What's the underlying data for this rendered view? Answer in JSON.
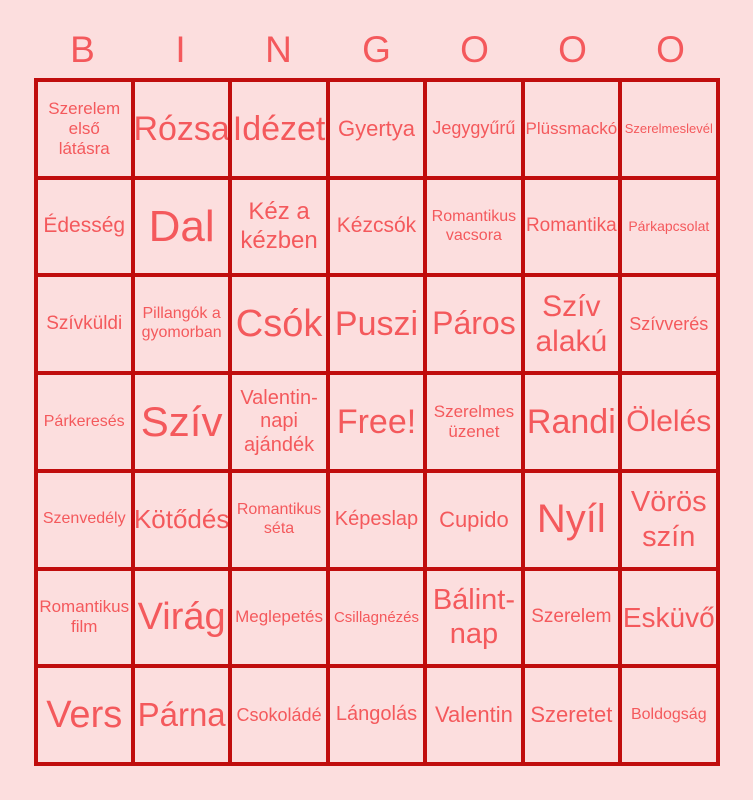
{
  "title": {
    "letters": [
      "B",
      "I",
      "N",
      "G",
      "O",
      "O",
      "O"
    ]
  },
  "colors": {
    "background": "#fcdede",
    "grid_line": "#c00d0d",
    "text": "#f4595c"
  },
  "grid": {
    "rows": 7,
    "cols": 7,
    "free_space_label": "Free!",
    "cells": [
      {
        "text": "Szerelem\nelső\nlátásra",
        "fs": 17
      },
      {
        "text": "Rózsa",
        "fs": 34
      },
      {
        "text": "Idézet",
        "fs": 34
      },
      {
        "text": "Gyertya",
        "fs": 22
      },
      {
        "text": "Jegygyűrű",
        "fs": 18
      },
      {
        "text": "Plüssmackó",
        "fs": 17
      },
      {
        "text": "Szerelmeslevél",
        "fs": 13
      },
      {
        "text": "Édesség",
        "fs": 21
      },
      {
        "text": "Dal",
        "fs": 44
      },
      {
        "text": "Kéz a\nkézben",
        "fs": 24
      },
      {
        "text": "Kézcsók",
        "fs": 21
      },
      {
        "text": "Romantikus\nvacsora",
        "fs": 16
      },
      {
        "text": "Romantika",
        "fs": 19
      },
      {
        "text": "Párkapcsolat",
        "fs": 14
      },
      {
        "text": "Szívküldi",
        "fs": 19
      },
      {
        "text": "Pillangók a\ngyomorban",
        "fs": 16
      },
      {
        "text": "Csók",
        "fs": 38
      },
      {
        "text": "Puszi",
        "fs": 34
      },
      {
        "text": "Páros",
        "fs": 32
      },
      {
        "text": "Szív\nalakú",
        "fs": 30
      },
      {
        "text": "Szívverés",
        "fs": 18
      },
      {
        "text": "Párkeresés",
        "fs": 16
      },
      {
        "text": "Szív",
        "fs": 42
      },
      {
        "text": "Valentin-\nnapi\najándék",
        "fs": 20
      },
      {
        "text": "Free!",
        "fs": 34,
        "free": true
      },
      {
        "text": "Szerelmes\nüzenet",
        "fs": 17
      },
      {
        "text": "Randi",
        "fs": 34
      },
      {
        "text": "Ölelés",
        "fs": 30
      },
      {
        "text": "Szenvedély",
        "fs": 16
      },
      {
        "text": "Kötődés",
        "fs": 26
      },
      {
        "text": "Romantikus\nséta",
        "fs": 16
      },
      {
        "text": "Képeslap",
        "fs": 20
      },
      {
        "text": "Cupido",
        "fs": 22
      },
      {
        "text": "Nyíl",
        "fs": 40
      },
      {
        "text": "Vörös\nszín",
        "fs": 29
      },
      {
        "text": "Romantikus\nfilm",
        "fs": 17
      },
      {
        "text": "Virág",
        "fs": 38
      },
      {
        "text": "Meglepetés",
        "fs": 17
      },
      {
        "text": "Csillagnézés",
        "fs": 15
      },
      {
        "text": "Bálint-\nnap",
        "fs": 29
      },
      {
        "text": "Szerelem",
        "fs": 19
      },
      {
        "text": "Esküvő",
        "fs": 28
      },
      {
        "text": "Vers",
        "fs": 38
      },
      {
        "text": "Párna",
        "fs": 33
      },
      {
        "text": "Csokoládé",
        "fs": 18
      },
      {
        "text": "Lángolás",
        "fs": 20
      },
      {
        "text": "Valentin",
        "fs": 22
      },
      {
        "text": "Szeretet",
        "fs": 22
      },
      {
        "text": "Boldogság",
        "fs": 16
      }
    ]
  }
}
